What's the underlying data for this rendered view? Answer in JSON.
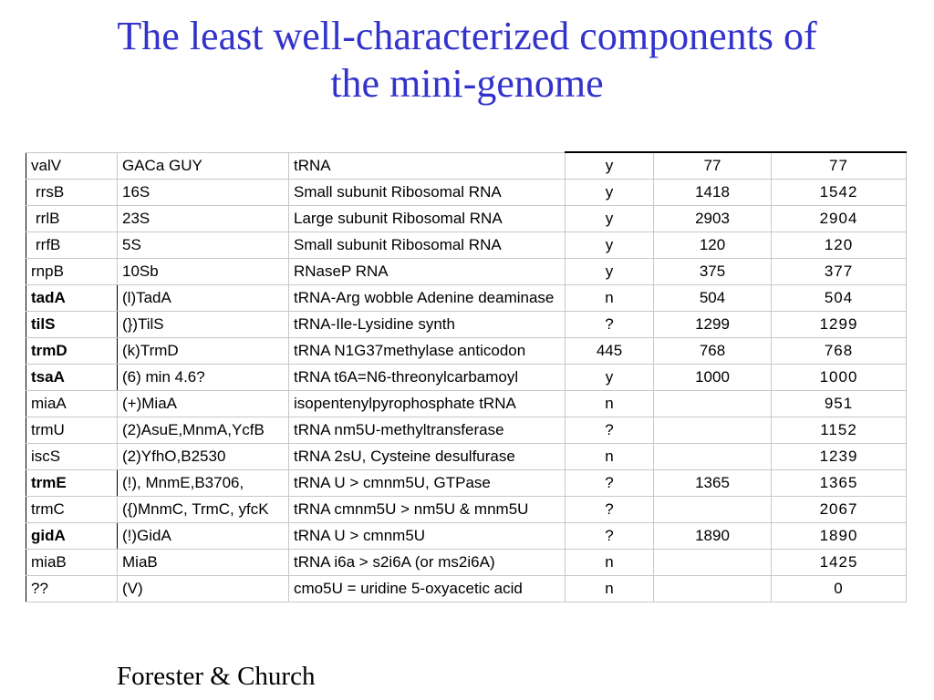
{
  "title": {
    "line1": "The least well-characterized components of",
    "line2": "the mini-genome"
  },
  "rows": [
    {
      "gene": "valV",
      "alias": "GACa  GUY",
      "description": "tRNA",
      "flag": "y",
      "len1": "77",
      "len2": "77",
      "bold": false
    },
    {
      "gene": "rrsB",
      "alias": "16S",
      "description": "Small subunit Ribosomal RNA",
      "flag": "y",
      "len1": "1418",
      "len2": "1542",
      "bold": false
    },
    {
      "gene": "rrlB",
      "alias": "23S",
      "description": "Large subunit Ribosomal RNA",
      "flag": "y",
      "len1": "2903",
      "len2": "2904",
      "bold": false
    },
    {
      "gene": "rrfB",
      "alias": "5S",
      "description": "Small subunit Ribosomal RNA",
      "flag": "y",
      "len1": "120",
      "len2": "120",
      "bold": false
    },
    {
      "gene": "rnpB",
      "alias": "10Sb",
      "description": "RNaseP RNA",
      "flag": "y",
      "len1": "375",
      "len2": "377",
      "bold": false
    },
    {
      "gene": "tadA",
      "alias": "(l)TadA",
      "description": "tRNA-Arg wobble Adenine deaminase",
      "flag": "n",
      "len1": "504",
      "len2": "504",
      "bold": true
    },
    {
      "gene": "tilS",
      "alias": "(})TilS",
      "description": "tRNA-Ile-Lysidine synth",
      "flag": "?",
      "len1": "1299",
      "len2": "1299",
      "bold": true
    },
    {
      "gene": "trmD",
      "alias": "(k)TrmD",
      "description": "tRNA N1G37methylase anticodon",
      "flag": "445",
      "len1": "768",
      "len2": "768",
      "bold": true
    },
    {
      "gene": "tsaA",
      "alias": "(6) min 4.6?",
      "description": "tRNA t6A=N6-threonylcarbamoyl",
      "flag": "y",
      "len1": "1000",
      "len2": "1000",
      "bold": true
    },
    {
      "gene": "miaA",
      "alias": "(+)MiaA",
      "description": "isopentenylpyrophosphate tRNA",
      "flag": "n",
      "len1": "",
      "len2": "951",
      "bold": false
    },
    {
      "gene": "trmU",
      "alias": "(2)AsuE,MnmA,YcfB",
      "description": "tRNA nm5U-methyltransferase",
      "flag": "?",
      "len1": "",
      "len2": "1152",
      "bold": false
    },
    {
      "gene": "iscS",
      "alias": "(2)YfhO,B2530",
      "description": "tRNA 2sU, Cysteine desulfurase",
      "flag": "n",
      "len1": "",
      "len2": "1239",
      "bold": false
    },
    {
      "gene": "trmE",
      "alias": "(!), MnmE,B3706,",
      "description": "tRNA U > cmnm5U,  GTPase",
      "flag": "?",
      "len1": "1365",
      "len2": "1365",
      "bold": true
    },
    {
      "gene": "trmC",
      "alias": "({)MnmC, TrmC, yfcK",
      "description": "tRNA cmnm5U  > nm5U  & mnm5U",
      "flag": "?",
      "len1": "",
      "len2": "2067",
      "bold": false
    },
    {
      "gene": "gidA",
      "alias": "(!)GidA",
      "description": "tRNA U > cmnm5U",
      "flag": "?",
      "len1": "1890",
      "len2": "1890",
      "bold": true
    },
    {
      "gene": "miaB",
      "alias": "MiaB",
      "description": "tRNA i6a > s2i6A (or ms2i6A)",
      "flag": "n",
      "len1": "",
      "len2": "1425",
      "bold": false
    },
    {
      "gene": "??",
      "alias": "(V)",
      "description": "cmo5U = uridine 5-oxyacetic acid",
      "flag": "n",
      "len1": "",
      "len2": "0",
      "bold": false
    }
  ],
  "credit": "Forester & Church"
}
